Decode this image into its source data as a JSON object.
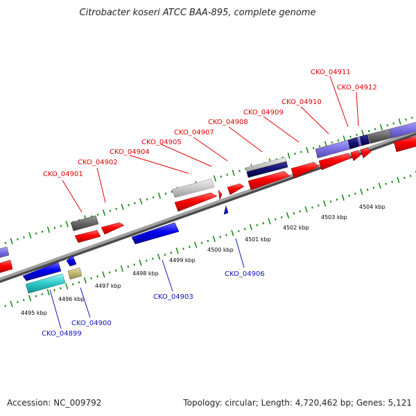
{
  "title": "Citrobacter koseri ATCC BAA-895, complete genome",
  "footer": {
    "accession": "Accession: NC_009792",
    "stats": "Topology: circular; Length: 4,720,462 bp; Genes: 5,121"
  },
  "colors": {
    "forward_label": "#e00000",
    "reverse_label": "#1010c0",
    "tick_green": "#1a8a1a",
    "backbone": "#8a8a8a"
  },
  "kbp_ticks": [
    {
      "label": "4495 kbp"
    },
    {
      "label": "4496 kbp"
    },
    {
      "label": "4497 kbp"
    },
    {
      "label": "4498 kbp"
    },
    {
      "label": "4499 kbp"
    },
    {
      "label": "4500 kbp"
    },
    {
      "label": "4501 kbp"
    },
    {
      "label": "4502 kbp"
    },
    {
      "label": "4503 kbp"
    },
    {
      "label": "4504 kbp"
    }
  ],
  "gene_labels_forward": [
    {
      "name": "CKO_04901"
    },
    {
      "name": "CKO_04902"
    },
    {
      "name": "CKO_04904"
    },
    {
      "name": "CKO_04905"
    },
    {
      "name": "CKO_04907"
    },
    {
      "name": "CKO_04908"
    },
    {
      "name": "CKO_04909"
    },
    {
      "name": "CKO_04910"
    },
    {
      "name": "CKO_04911"
    },
    {
      "name": "CKO_04912"
    }
  ],
  "gene_labels_reverse": [
    {
      "name": "CKO_04899"
    },
    {
      "name": "CKO_04900"
    },
    {
      "name": "CKO_04903"
    },
    {
      "name": "CKO_04906"
    }
  ]
}
